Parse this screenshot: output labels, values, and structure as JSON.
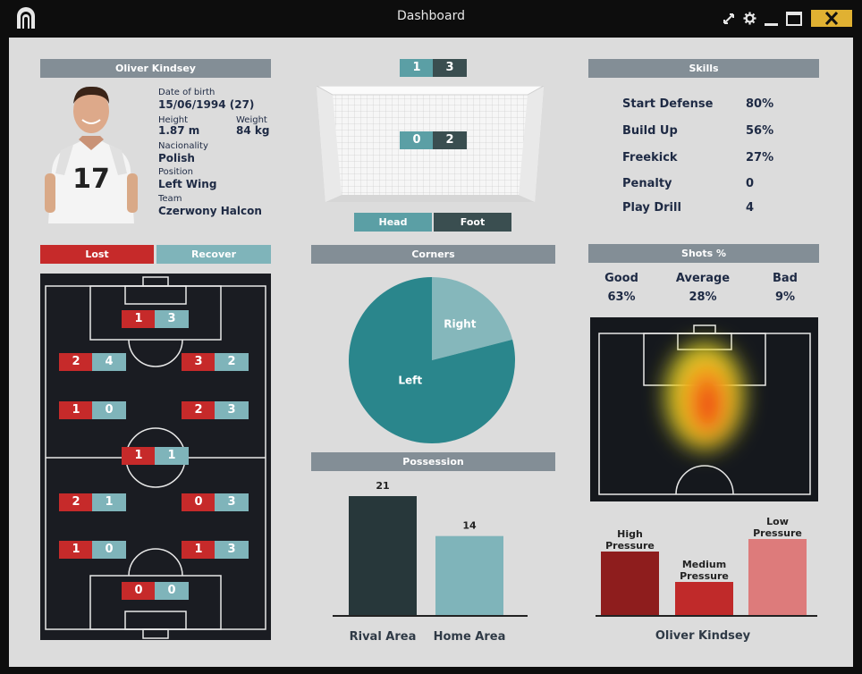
{
  "window": {
    "title": "Dashboard"
  },
  "player": {
    "header": "Oliver Kindsey",
    "jersey_number": "17",
    "dob_label": "Date of birth",
    "dob_value": "15/06/1994 (27)",
    "height_label": "Height",
    "height_value": "1.87 m",
    "weight_label": "Weight",
    "weight_value": "84 kg",
    "nationality_label": "Nacionality",
    "nationality_value": "Polish",
    "position_label": "Position",
    "position_value": "Left Wing",
    "team_label": "Team",
    "team_value": "Czerwony Halcon"
  },
  "goal": {
    "score_top": [
      "1",
      "3"
    ],
    "score_mid": [
      "0",
      "2"
    ],
    "head_label": "Head",
    "foot_label": "Foot"
  },
  "skills": {
    "header": "Skills",
    "items": [
      {
        "name": "Start Defense",
        "value": "80%"
      },
      {
        "name": "Build Up",
        "value": "56%"
      },
      {
        "name": "Freekick",
        "value": "27%"
      },
      {
        "name": "Penalty",
        "value": "0"
      },
      {
        "name": "Play Drill",
        "value": "4"
      }
    ]
  },
  "field": {
    "lost_label": "Lost",
    "recover_label": "Recover",
    "zones": [
      {
        "lost": "1",
        "recover": "3"
      },
      {
        "lost": "2",
        "recover": "4"
      },
      {
        "lost": "3",
        "recover": "2"
      },
      {
        "lost": "1",
        "recover": "0"
      },
      {
        "lost": "2",
        "recover": "3"
      },
      {
        "lost": "1",
        "recover": "1"
      },
      {
        "lost": "2",
        "recover": "1"
      },
      {
        "lost": "0",
        "recover": "3"
      },
      {
        "lost": "1",
        "recover": "0"
      },
      {
        "lost": "1",
        "recover": "3"
      },
      {
        "lost": "0",
        "recover": "0"
      }
    ]
  },
  "corners": {
    "header": "Corners",
    "chart_data": {
      "type": "pie",
      "labels": [
        "Left",
        "Right"
      ],
      "values": [
        79,
        21
      ],
      "colors": [
        "#2a868c",
        "#85b7bb"
      ]
    }
  },
  "possession": {
    "header": "Possession",
    "chart_data": {
      "type": "bar",
      "categories": [
        "Rival Area",
        "Home Area"
      ],
      "values": [
        21,
        14
      ],
      "colors": [
        "#27373a",
        "#7fb4ba"
      ]
    }
  },
  "shots": {
    "header": "Shots %",
    "items": [
      {
        "label": "Good",
        "value": "63%"
      },
      {
        "label": "Average",
        "value": "28%"
      },
      {
        "label": "Bad",
        "value": "9%"
      }
    ]
  },
  "pressure": {
    "chart_data": {
      "type": "bar",
      "categories": [
        "High Pressure",
        "Medium Pressure",
        "Low Pressure"
      ],
      "values": [
        72,
        38,
        86
      ],
      "colors": [
        "#8e1d1d",
        "#c02a2a",
        "#dd7b7b"
      ]
    },
    "caption": "Oliver Kindsey"
  }
}
